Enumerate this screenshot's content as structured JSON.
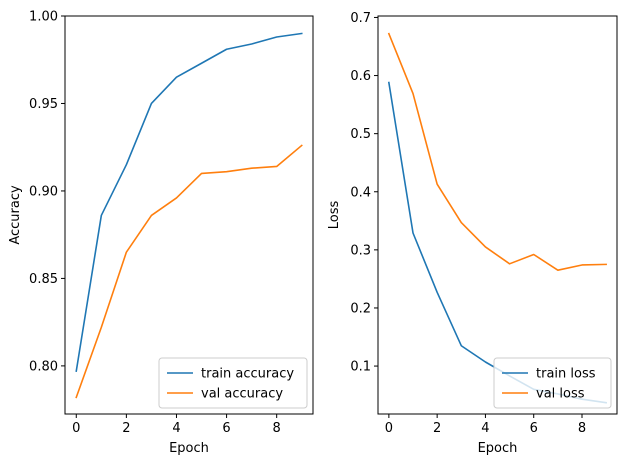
{
  "chart_data": [
    {
      "type": "line",
      "xlabel": "Epoch",
      "ylabel": "Accuracy",
      "xlim": [
        -0.45,
        9.45
      ],
      "ylim": [
        0.7725,
        1.0
      ],
      "xticks": [
        0,
        2,
        4,
        6,
        8
      ],
      "xtick_labels": [
        "0",
        "2",
        "4",
        "6",
        "8"
      ],
      "yticks": [
        0.8,
        0.85,
        0.9,
        0.95,
        1.0
      ],
      "ytick_labels": [
        "0.80",
        "0.85",
        "0.90",
        "0.95",
        "1.00"
      ],
      "legend_position": "lower right",
      "x": [
        0,
        1,
        2,
        3,
        4,
        5,
        6,
        7,
        8,
        9
      ],
      "series": [
        {
          "name": "train accuracy",
          "color": "#1f77b4",
          "values": [
            0.797,
            0.886,
            0.915,
            0.95,
            0.965,
            0.973,
            0.981,
            0.984,
            0.988,
            0.99
          ]
        },
        {
          "name": "val accuracy",
          "color": "#ff7f0e",
          "values": [
            0.782,
            0.822,
            0.865,
            0.886,
            0.896,
            0.91,
            0.911,
            0.913,
            0.914,
            0.926
          ]
        }
      ]
    },
    {
      "type": "line",
      "xlabel": "Epoch",
      "ylabel": "Loss",
      "xlim": [
        -0.45,
        9.45
      ],
      "ylim": [
        0.0175,
        0.7025
      ],
      "xticks": [
        0,
        2,
        4,
        6,
        8
      ],
      "xtick_labels": [
        "0",
        "2",
        "4",
        "6",
        "8"
      ],
      "yticks": [
        0.1,
        0.2,
        0.3,
        0.4,
        0.5,
        0.6,
        0.7
      ],
      "ytick_labels": [
        "0.1",
        "0.2",
        "0.3",
        "0.4",
        "0.5",
        "0.6",
        "0.7"
      ],
      "legend_position": "lower right",
      "x": [
        0,
        1,
        2,
        3,
        4,
        5,
        6,
        7,
        8,
        9
      ],
      "series": [
        {
          "name": "train loss",
          "color": "#1f77b4",
          "values": [
            0.588,
            0.329,
            0.227,
            0.135,
            0.107,
            0.083,
            0.06,
            0.052,
            0.043,
            0.037
          ]
        },
        {
          "name": "val loss",
          "color": "#ff7f0e",
          "values": [
            0.672,
            0.569,
            0.413,
            0.347,
            0.305,
            0.276,
            0.292,
            0.265,
            0.274,
            0.275
          ]
        }
      ]
    }
  ]
}
